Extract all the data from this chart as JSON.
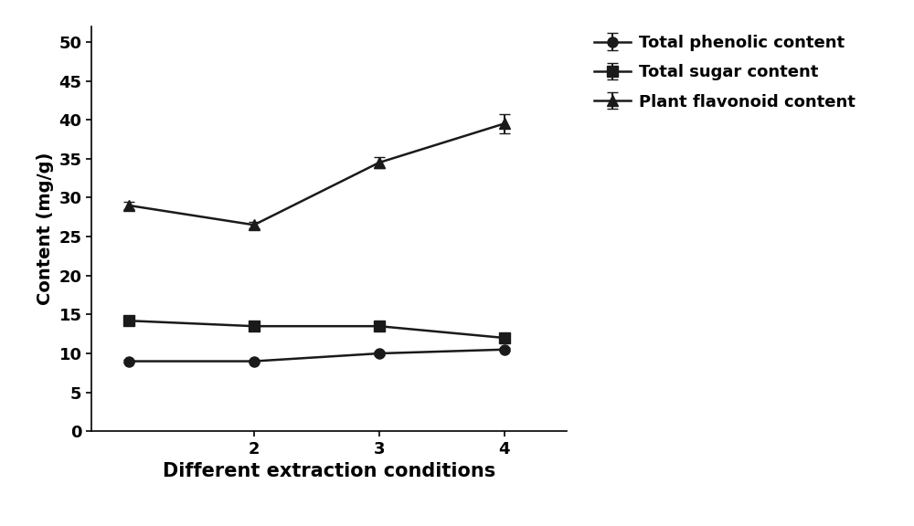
{
  "x": [
    1,
    2,
    3,
    4
  ],
  "x_tick_positions": [
    2,
    3,
    4
  ],
  "x_tick_labels": [
    "2",
    "3",
    "4"
  ],
  "phenolic": {
    "values": [
      9.0,
      9.0,
      10.0,
      10.5
    ],
    "yerr": [
      0.2,
      0.2,
      0.2,
      0.2
    ],
    "label": "Total phenolic content",
    "marker": "o",
    "color": "#1a1a1a"
  },
  "sugar": {
    "values": [
      14.2,
      13.5,
      13.5,
      12.0
    ],
    "yerr": [
      0.25,
      0.25,
      0.25,
      0.25
    ],
    "label": "Total sugar content",
    "marker": "s",
    "color": "#1a1a1a"
  },
  "flavonoid": {
    "values": [
      29.0,
      26.5,
      34.5,
      39.5
    ],
    "yerr": [
      0.5,
      0.4,
      0.7,
      1.2
    ],
    "label": "Plant flavonoid content",
    "marker": "^",
    "color": "#1a1a1a"
  },
  "xlabel": "Different extraction conditions",
  "ylabel": "Content (mg/g)",
  "ylim": [
    0,
    52
  ],
  "yticks": [
    0,
    5,
    10,
    15,
    20,
    25,
    30,
    35,
    40,
    45,
    50
  ],
  "xlim": [
    0.7,
    4.5
  ],
  "linewidth": 1.8,
  "markersize": 8,
  "capsize": 4,
  "elinewidth": 1.5,
  "legend_fontsize": 13,
  "axis_label_fontsize": 14,
  "tick_fontsize": 13,
  "xlabel_fontsize": 15
}
